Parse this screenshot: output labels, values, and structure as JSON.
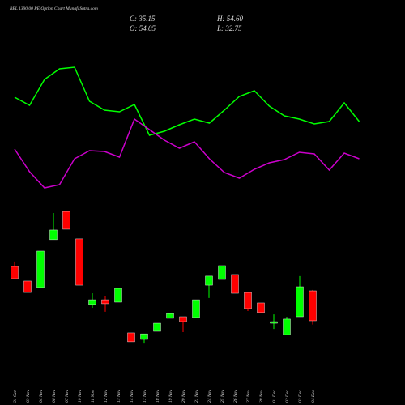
{
  "chart_data": [
    {
      "type": "candlestick",
      "title": "BEL 1390.00 PE Option Chart MunafaSutra.com",
      "info": {
        "close": "C: 35.15",
        "high": "H: 54.60",
        "open": "O: 54.05",
        "low": "L: 32.75"
      },
      "categories": [
        "31 Oct",
        "03 Nov",
        "04 Nov",
        "06 Nov",
        "07 Nov",
        "10 Nov",
        "11 Nov",
        "12 Nov",
        "13 Nov",
        "14 Nov",
        "17 Nov",
        "18 Nov",
        "19 Nov",
        "20 Nov",
        "21 Nov",
        "24 Nov",
        "25 Nov",
        "26 Nov",
        "27 Nov",
        "28 Nov",
        "01 Dec",
        "02 Dec",
        "03 Dec",
        "04 Dec"
      ],
      "open": [
        69.4,
        60.2,
        56.1,
        86.3,
        104.1,
        86.8,
        45.4,
        48.4,
        46.9,
        27.5,
        23.4,
        28.5,
        36.7,
        37.7,
        37.2,
        57.6,
        61.2,
        64.3,
        53.0,
        46.4,
        33.6,
        26.4,
        37.7,
        54.05
      ],
      "high": [
        72.5,
        60.2,
        79.1,
        103.1,
        104.1,
        86.8,
        52.5,
        51.0,
        55.6,
        27.5,
        26.9,
        33.6,
        39.7,
        37.7,
        48.4,
        63.3,
        69.9,
        64.3,
        53.0,
        46.4,
        39.2,
        37.7,
        63.3,
        54.6
      ],
      "low": [
        61.7,
        53.0,
        56.1,
        86.3,
        92.9,
        57.6,
        43.3,
        40.8,
        46.9,
        21.9,
        20.8,
        28.5,
        36.7,
        28.0,
        37.2,
        49.5,
        61.2,
        52.5,
        41.3,
        40.3,
        30.0,
        26.4,
        37.7,
        32.75
      ],
      "close": [
        61.7,
        53.0,
        79.1,
        92.4,
        92.9,
        57.6,
        48.4,
        45.9,
        55.6,
        21.9,
        26.9,
        33.6,
        39.7,
        34.6,
        48.4,
        63.3,
        69.9,
        52.5,
        42.8,
        40.3,
        34.6,
        36.2,
        56.6,
        35.15
      ],
      "up_color": "#00ff00",
      "down_color": "#ff0000",
      "ylim": [
        -18.0,
        237.5
      ]
    },
    {
      "type": "line",
      "ylim": [
        0,
        500
      ],
      "series": [
        {
          "color": "#00ff00",
          "values": [
            380,
            370,
            402,
            415,
            417,
            375,
            364,
            362,
            371,
            333,
            338,
            346,
            353,
            348,
            364,
            381,
            388,
            369,
            357,
            353,
            347,
            350,
            373,
            350
          ]
        },
        {
          "color": "#cc00cc",
          "values": [
            316,
            288,
            268,
            272,
            304,
            314,
            313,
            306,
            353,
            340,
            327,
            317,
            325,
            304,
            287,
            280,
            291,
            299,
            303,
            312,
            310,
            290,
            311,
            304
          ]
        }
      ]
    }
  ]
}
